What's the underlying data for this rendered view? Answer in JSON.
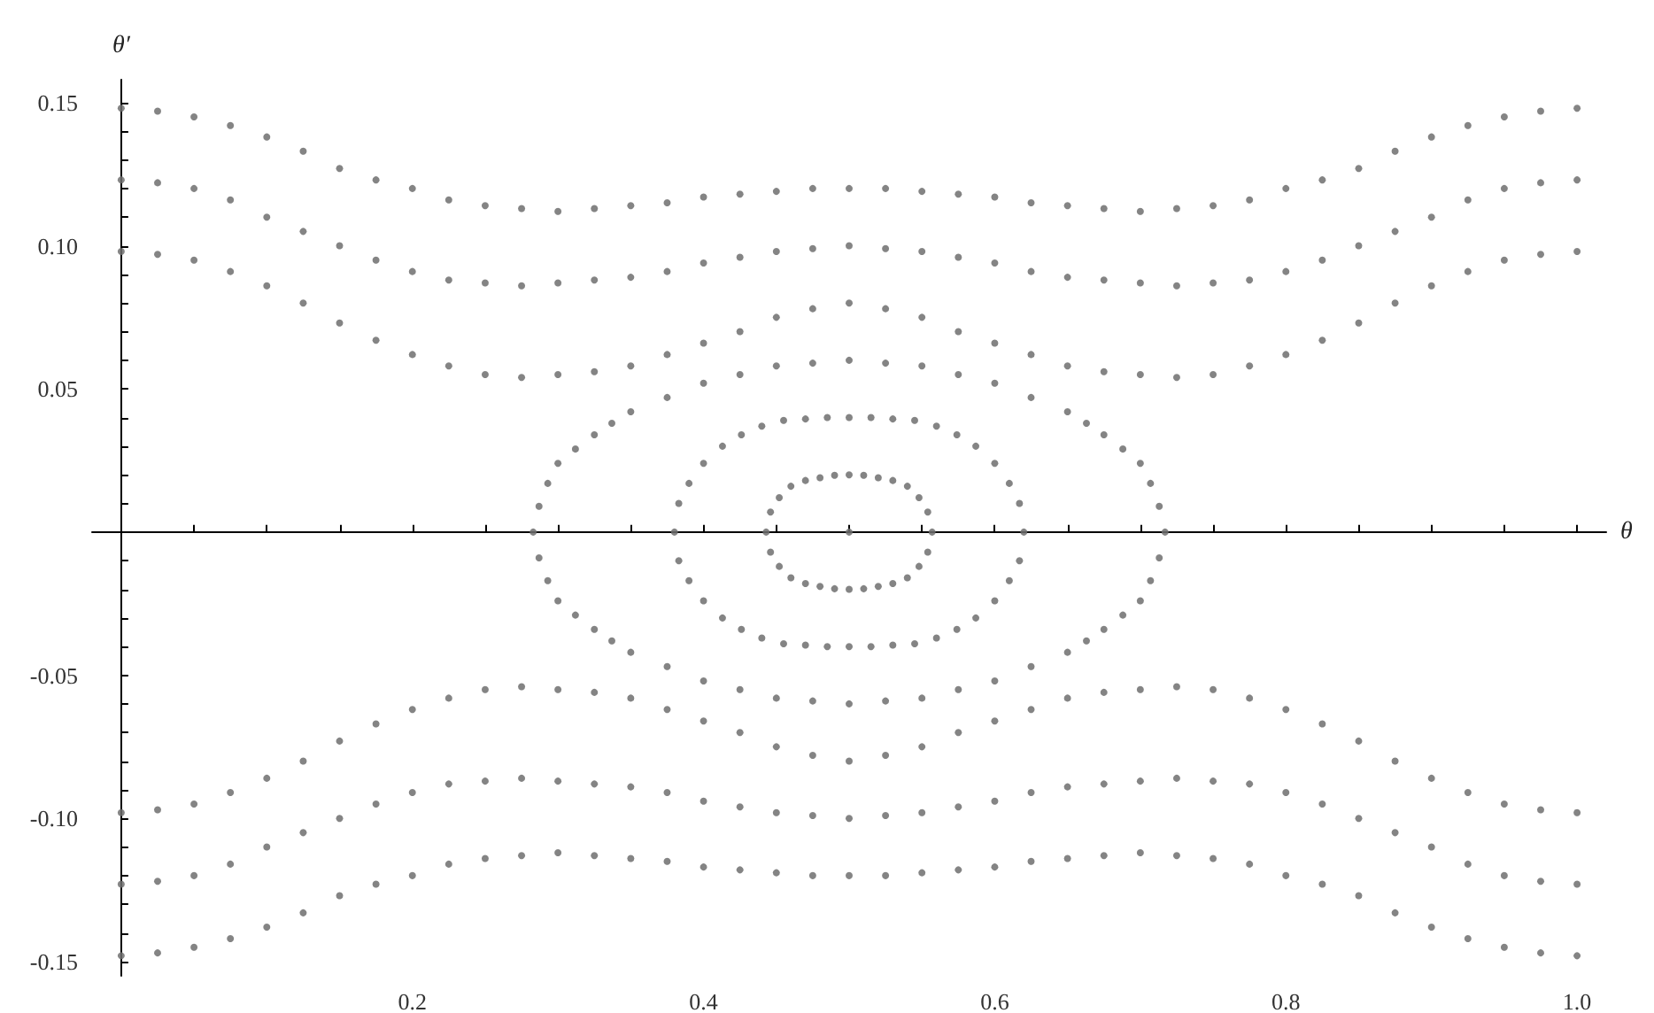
{
  "chart_data": {
    "type": "scatter",
    "xlabel": "θ",
    "ylabel": "θ′",
    "marker": "circle",
    "xlim": [
      -0.02,
      1.02
    ],
    "ylim": [
      -0.155,
      0.158
    ],
    "xticks": [
      {
        "value": 0.05,
        "label": null
      },
      {
        "value": 0.1,
        "label": null
      },
      {
        "value": 0.15,
        "label": null
      },
      0.2,
      {
        "value": 0.25,
        "label": null
      },
      {
        "value": 0.3,
        "label": null
      },
      {
        "value": 0.35,
        "label": null
      },
      0.4,
      {
        "value": 0.45,
        "label": null
      },
      {
        "value": 0.5,
        "label": null
      },
      {
        "value": 0.55,
        "label": null
      },
      0.6,
      {
        "value": 0.65,
        "label": null
      },
      {
        "value": 0.7,
        "label": null
      },
      {
        "value": 0.75,
        "label": null
      },
      0.8,
      {
        "value": 0.85,
        "label": null
      },
      {
        "value": 0.9,
        "label": null
      },
      {
        "value": 0.95,
        "label": null
      },
      {
        "value": 1,
        "label": "1.0"
      }
    ],
    "yticks": [
      {
        "value": -0.15,
        "label": "-0.15"
      },
      {
        "value": -0.14,
        "label": null
      },
      {
        "value": -0.13,
        "label": null
      },
      {
        "value": -0.12,
        "label": null
      },
      {
        "value": -0.11,
        "label": null
      },
      {
        "value": -0.1,
        "label": "-0.10"
      },
      {
        "value": -0.09,
        "label": null
      },
      {
        "value": -0.08,
        "label": null
      },
      {
        "value": -0.07,
        "label": null
      },
      {
        "value": -0.06,
        "label": null
      },
      {
        "value": -0.05,
        "label": "-0.05"
      },
      {
        "value": -0.04,
        "label": null
      },
      {
        "value": -0.03,
        "label": null
      },
      {
        "value": -0.02,
        "label": null
      },
      {
        "value": -0.01,
        "label": null
      },
      {
        "value": 0.01,
        "label": null
      },
      {
        "value": 0.02,
        "label": null
      },
      {
        "value": 0.03,
        "label": null
      },
      {
        "value": 0.04,
        "label": null
      },
      {
        "value": 0.05,
        "label": "0.05"
      },
      {
        "value": 0.06,
        "label": null
      },
      {
        "value": 0.07,
        "label": null
      },
      {
        "value": 0.08,
        "label": null
      },
      {
        "value": 0.09,
        "label": null
      },
      {
        "value": 0.1,
        "label": "0.10"
      },
      {
        "value": 0.11,
        "label": null
      },
      {
        "value": 0.12,
        "label": null
      },
      {
        "value": 0.13,
        "label": null
      },
      {
        "value": 0.14,
        "label": null
      },
      {
        "value": 0.15,
        "label": "0.15"
      }
    ],
    "series": [
      {
        "color": "#6e6e6e",
        "x": [
          0,
          0.025,
          0.05,
          0.075,
          0.1,
          0.125,
          0.15,
          0.175,
          0.2,
          0.225,
          0.25,
          0.275,
          0.3,
          0.325,
          0.35,
          0.375,
          0.4,
          0.425,
          0.45,
          0.475,
          0.5,
          0.525,
          0.55,
          0.575,
          0.6,
          0.625,
          0.65,
          0.675,
          0.7,
          0.725,
          0.75,
          0.775,
          0.8,
          0.825,
          0.85,
          0.875,
          0.9,
          0.925,
          0.95,
          0.975,
          1
        ],
        "values": [
          0.148,
          0.147,
          0.145,
          0.142,
          0.138,
          0.133,
          0.127,
          0.123,
          0.12,
          0.116,
          0.114,
          0.113,
          0.112,
          0.113,
          0.114,
          0.115,
          0.117,
          0.118,
          0.119,
          0.12,
          0.12,
          0.12,
          0.119,
          0.118,
          0.117,
          0.115,
          0.114,
          0.113,
          0.112,
          0.113,
          0.114,
          0.116,
          0.12,
          0.123,
          0.127,
          0.133,
          0.138,
          0.142,
          0.145,
          0.147,
          0.148
        ]
      },
      {
        "color": "#6e6e6e",
        "x": [
          0,
          0.025,
          0.05,
          0.075,
          0.1,
          0.125,
          0.15,
          0.175,
          0.2,
          0.225,
          0.25,
          0.275,
          0.3,
          0.325,
          0.35,
          0.375,
          0.4,
          0.425,
          0.45,
          0.475,
          0.5,
          0.525,
          0.55,
          0.575,
          0.6,
          0.625,
          0.65,
          0.675,
          0.7,
          0.725,
          0.75,
          0.775,
          0.8,
          0.825,
          0.85,
          0.875,
          0.9,
          0.925,
          0.95,
          0.975,
          1
        ],
        "values": [
          0.123,
          0.122,
          0.12,
          0.116,
          0.11,
          0.105,
          0.1,
          0.095,
          0.091,
          0.088,
          0.087,
          0.086,
          0.087,
          0.088,
          0.089,
          0.091,
          0.094,
          0.096,
          0.098,
          0.099,
          0.1,
          0.099,
          0.098,
          0.096,
          0.094,
          0.091,
          0.089,
          0.088,
          0.087,
          0.086,
          0.087,
          0.088,
          0.091,
          0.095,
          0.1,
          0.105,
          0.11,
          0.116,
          0.12,
          0.122,
          0.123
        ]
      },
      {
        "color": "#6e6e6e",
        "x": [
          0,
          0.025,
          0.05,
          0.075,
          0.1,
          0.125,
          0.15,
          0.175,
          0.2,
          0.225,
          0.25,
          0.275,
          0.3,
          0.325,
          0.35,
          0.375,
          0.4,
          0.425,
          0.45,
          0.475,
          0.5,
          0.525,
          0.55,
          0.575,
          0.6,
          0.625,
          0.65,
          0.675,
          0.7,
          0.725,
          0.75,
          0.775,
          0.8,
          0.825,
          0.85,
          0.875,
          0.9,
          0.925,
          0.95,
          0.975,
          1
        ],
        "values": [
          0.098,
          0.097,
          0.095,
          0.091,
          0.086,
          0.08,
          0.073,
          0.067,
          0.062,
          0.058,
          0.055,
          0.054,
          0.055,
          0.056,
          0.058,
          0.062,
          0.066,
          0.07,
          0.075,
          0.078,
          0.08,
          0.078,
          0.075,
          0.07,
          0.066,
          0.062,
          0.058,
          0.056,
          0.055,
          0.054,
          0.055,
          0.058,
          0.062,
          0.067,
          0.073,
          0.08,
          0.086,
          0.091,
          0.095,
          0.097,
          0.098
        ]
      },
      {
        "color": "#6e6e6e",
        "x": [
          0.283,
          0.287,
          0.293,
          0.3,
          0.312,
          0.325,
          0.337,
          0.35,
          0.375,
          0.4,
          0.425,
          0.45,
          0.475,
          0.5,
          0.525,
          0.55,
          0.575,
          0.6,
          0.625,
          0.65,
          0.663,
          0.675,
          0.688,
          0.7,
          0.707,
          0.713,
          0.717,
          0.713,
          0.707,
          0.7,
          0.688,
          0.675,
          0.663,
          0.65,
          0.625,
          0.6,
          0.575,
          0.55,
          0.525,
          0.5,
          0.475,
          0.45,
          0.425,
          0.4,
          0.375,
          0.35,
          0.337,
          0.325,
          0.312,
          0.3,
          0.293,
          0.287
        ],
        "values": [
          0,
          0.009,
          0.017,
          0.024,
          0.029,
          0.034,
          0.038,
          0.042,
          0.047,
          0.052,
          0.055,
          0.058,
          0.059,
          0.06,
          0.059,
          0.058,
          0.055,
          0.052,
          0.047,
          0.042,
          0.038,
          0.034,
          0.029,
          0.024,
          0.017,
          0.009,
          0,
          -0.009,
          -0.017,
          -0.024,
          -0.029,
          -0.034,
          -0.038,
          -0.042,
          -0.047,
          -0.052,
          -0.055,
          -0.058,
          -0.059,
          -0.06,
          -0.059,
          -0.058,
          -0.055,
          -0.052,
          -0.047,
          -0.042,
          -0.038,
          -0.034,
          -0.029,
          -0.024,
          -0.017,
          -0.009
        ]
      },
      {
        "color": "#6e6e6e",
        "x": [
          0.38,
          0.383,
          0.39,
          0.4,
          0.413,
          0.426,
          0.44,
          0.455,
          0.47,
          0.485,
          0.5,
          0.515,
          0.53,
          0.545,
          0.56,
          0.574,
          0.587,
          0.6,
          0.61,
          0.617,
          0.62,
          0.617,
          0.61,
          0.6,
          0.587,
          0.574,
          0.56,
          0.545,
          0.53,
          0.515,
          0.5,
          0.485,
          0.47,
          0.455,
          0.44,
          0.426,
          0.413,
          0.4,
          0.39,
          0.383
        ],
        "values": [
          0,
          0.01,
          0.017,
          0.024,
          0.03,
          0.034,
          0.037,
          0.039,
          0.0395,
          0.04,
          0.04,
          0.04,
          0.0395,
          0.039,
          0.037,
          0.034,
          0.03,
          0.024,
          0.017,
          0.01,
          0,
          -0.01,
          -0.017,
          -0.024,
          -0.03,
          -0.034,
          -0.037,
          -0.039,
          -0.0395,
          -0.04,
          -0.04,
          -0.04,
          -0.0395,
          -0.039,
          -0.037,
          -0.034,
          -0.03,
          -0.024,
          -0.017,
          -0.01
        ]
      },
      {
        "color": "#6e6e6e",
        "x": [
          0.443,
          0.446,
          0.452,
          0.46,
          0.47,
          0.48,
          0.49,
          0.5,
          0.51,
          0.52,
          0.53,
          0.54,
          0.548,
          0.554,
          0.557,
          0.554,
          0.548,
          0.54,
          0.53,
          0.52,
          0.51,
          0.5,
          0.49,
          0.48,
          0.47,
          0.46,
          0.452,
          0.446
        ],
        "values": [
          0,
          0.007,
          0.012,
          0.016,
          0.018,
          0.019,
          0.0198,
          0.02,
          0.0198,
          0.019,
          0.018,
          0.016,
          0.012,
          0.007,
          0,
          -0.007,
          -0.012,
          -0.016,
          -0.018,
          -0.019,
          -0.0198,
          -0.02,
          -0.0198,
          -0.019,
          -0.018,
          -0.016,
          -0.012,
          -0.007
        ]
      },
      {
        "color": "#6e6e6e",
        "x": [
          0.5
        ],
        "values": [
          0
        ]
      },
      {
        "color": "#6e6e6e",
        "x": [
          0,
          0.025,
          0.05,
          0.075,
          0.1,
          0.125,
          0.15,
          0.175,
          0.2,
          0.225,
          0.25,
          0.275,
          0.3,
          0.325,
          0.35,
          0.375,
          0.4,
          0.425,
          0.45,
          0.475,
          0.5,
          0.525,
          0.55,
          0.575,
          0.6,
          0.625,
          0.65,
          0.675,
          0.7,
          0.725,
          0.75,
          0.775,
          0.8,
          0.825,
          0.85,
          0.875,
          0.9,
          0.925,
          0.95,
          0.975,
          1
        ],
        "values": [
          -0.098,
          -0.097,
          -0.095,
          -0.091,
          -0.086,
          -0.08,
          -0.073,
          -0.067,
          -0.062,
          -0.058,
          -0.055,
          -0.054,
          -0.055,
          -0.056,
          -0.058,
          -0.062,
          -0.066,
          -0.07,
          -0.075,
          -0.078,
          -0.08,
          -0.078,
          -0.075,
          -0.07,
          -0.066,
          -0.062,
          -0.058,
          -0.056,
          -0.055,
          -0.054,
          -0.055,
          -0.058,
          -0.062,
          -0.067,
          -0.073,
          -0.08,
          -0.086,
          -0.091,
          -0.095,
          -0.097,
          -0.098
        ]
      },
      {
        "color": "#6e6e6e",
        "x": [
          0,
          0.025,
          0.05,
          0.075,
          0.1,
          0.125,
          0.15,
          0.175,
          0.2,
          0.225,
          0.25,
          0.275,
          0.3,
          0.325,
          0.35,
          0.375,
          0.4,
          0.425,
          0.45,
          0.475,
          0.5,
          0.525,
          0.55,
          0.575,
          0.6,
          0.625,
          0.65,
          0.675,
          0.7,
          0.725,
          0.75,
          0.775,
          0.8,
          0.825,
          0.85,
          0.875,
          0.9,
          0.925,
          0.95,
          0.975,
          1
        ],
        "values": [
          -0.123,
          -0.122,
          -0.12,
          -0.116,
          -0.11,
          -0.105,
          -0.1,
          -0.095,
          -0.091,
          -0.088,
          -0.087,
          -0.086,
          -0.087,
          -0.088,
          -0.089,
          -0.091,
          -0.094,
          -0.096,
          -0.098,
          -0.099,
          -0.1,
          -0.099,
          -0.098,
          -0.096,
          -0.094,
          -0.091,
          -0.089,
          -0.088,
          -0.087,
          -0.086,
          -0.087,
          -0.088,
          -0.091,
          -0.095,
          -0.1,
          -0.105,
          -0.11,
          -0.116,
          -0.12,
          -0.122,
          -0.123
        ]
      },
      {
        "color": "#6e6e6e",
        "x": [
          0,
          0.025,
          0.05,
          0.075,
          0.1,
          0.125,
          0.15,
          0.175,
          0.2,
          0.225,
          0.25,
          0.275,
          0.3,
          0.325,
          0.35,
          0.375,
          0.4,
          0.425,
          0.45,
          0.475,
          0.5,
          0.525,
          0.55,
          0.575,
          0.6,
          0.625,
          0.65,
          0.675,
          0.7,
          0.725,
          0.75,
          0.775,
          0.8,
          0.825,
          0.85,
          0.875,
          0.9,
          0.925,
          0.95,
          0.975,
          1
        ],
        "values": [
          -0.148,
          -0.147,
          -0.145,
          -0.142,
          -0.138,
          -0.133,
          -0.127,
          -0.123,
          -0.12,
          -0.116,
          -0.114,
          -0.113,
          -0.112,
          -0.113,
          -0.114,
          -0.115,
          -0.117,
          -0.118,
          -0.119,
          -0.12,
          -0.12,
          -0.12,
          -0.119,
          -0.118,
          -0.117,
          -0.115,
          -0.114,
          -0.113,
          -0.112,
          -0.113,
          -0.114,
          -0.116,
          -0.12,
          -0.123,
          -0.127,
          -0.133,
          -0.138,
          -0.142,
          -0.145,
          -0.147,
          -0.148
        ]
      }
    ]
  }
}
